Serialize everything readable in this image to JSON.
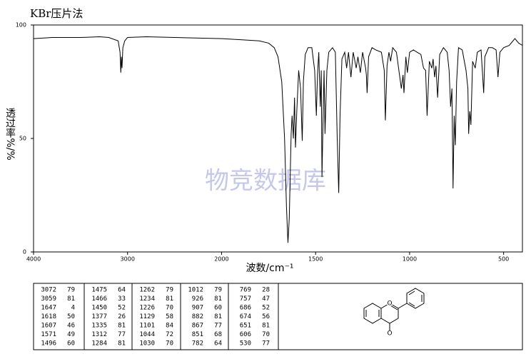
{
  "chart_data": {
    "type": "line",
    "title": "KBr压片法",
    "x_label": "波数/cm⁻¹",
    "y_label": "透过率%/%",
    "watermark": "物竞数据库",
    "color": "#000000",
    "xlim": [
      4000,
      400
    ],
    "xscale": {
      "break": 2000,
      "factor": 2
    },
    "xticks": [
      4000,
      3000,
      2000,
      1500,
      1000,
      500
    ],
    "ylim": [
      0,
      100
    ],
    "yticks": [
      0,
      50,
      100
    ],
    "x": [
      4000,
      3800,
      3500,
      3300,
      3200,
      3100,
      3080,
      3072,
      3065,
      3059,
      3050,
      3030,
      3000,
      2800,
      2500,
      2200,
      2000,
      1900,
      1800,
      1750,
      1720,
      1700,
      1680,
      1665,
      1655,
      1647,
      1640,
      1630,
      1625,
      1618,
      1612,
      1607,
      1600,
      1590,
      1580,
      1571,
      1565,
      1555,
      1540,
      1520,
      1505,
      1496,
      1490,
      1483,
      1478,
      1475,
      1470,
      1466,
      1460,
      1455,
      1450,
      1440,
      1430,
      1410,
      1395,
      1385,
      1377,
      1370,
      1360,
      1345,
      1335,
      1325,
      1312,
      1300,
      1284,
      1275,
      1262,
      1250,
      1234,
      1230,
      1226,
      1218,
      1200,
      1180,
      1150,
      1135,
      1129,
      1120,
      1110,
      1101,
      1090,
      1070,
      1044,
      1035,
      1030,
      1020,
      1012,
      1000,
      980,
      960,
      940,
      926,
      915,
      907,
      895,
      882,
      875,
      867,
      860,
      851,
      840,
      820,
      800,
      790,
      782,
      775,
      769,
      763,
      757,
      750,
      740,
      720,
      700,
      690,
      686,
      680,
      674,
      665,
      651,
      640,
      620,
      606,
      600,
      580,
      560,
      540,
      530,
      520,
      500,
      470,
      440,
      420,
      400
    ],
    "values": [
      94,
      94.5,
      94.5,
      94.8,
      94.5,
      93,
      88,
      79,
      86,
      81,
      90,
      93,
      94.5,
      94.8,
      94.5,
      94.2,
      94,
      93.5,
      93,
      92,
      90,
      86,
      75,
      50,
      20,
      4,
      15,
      52,
      60,
      50,
      68,
      46,
      62,
      80,
      72,
      49,
      75,
      87,
      90,
      90,
      80,
      60,
      78,
      88,
      72,
      64,
      80,
      33,
      60,
      80,
      52,
      80,
      88,
      90,
      88,
      50,
      26,
      60,
      85,
      88,
      81,
      88,
      77,
      88,
      81,
      86,
      79,
      88,
      81,
      78,
      70,
      86,
      90,
      89,
      88,
      80,
      58,
      82,
      88,
      84,
      90,
      88,
      72,
      78,
      70,
      86,
      79,
      88,
      89,
      88,
      87,
      81,
      80,
      60,
      84,
      81,
      85,
      77,
      82,
      68,
      87,
      90,
      88,
      80,
      64,
      72,
      28,
      60,
      47,
      75,
      90,
      89,
      80,
      72,
      52,
      62,
      56,
      84,
      81,
      88,
      89,
      70,
      86,
      90,
      90,
      89,
      77,
      88,
      90,
      91,
      94,
      92,
      91
    ]
  },
  "peak_table": [
    [
      [
        3072,
        79
      ],
      [
        3059,
        81
      ],
      [
        1647,
        4
      ],
      [
        1618,
        50
      ],
      [
        1607,
        46
      ],
      [
        1571,
        49
      ],
      [
        1496,
        60
      ]
    ],
    [
      [
        1475,
        64
      ],
      [
        1466,
        33
      ],
      [
        1450,
        52
      ],
      [
        1377,
        26
      ],
      [
        1335,
        81
      ],
      [
        1312,
        77
      ],
      [
        1284,
        81
      ]
    ],
    [
      [
        1262,
        79
      ],
      [
        1234,
        81
      ],
      [
        1226,
        70
      ],
      [
        1129,
        58
      ],
      [
        1101,
        84
      ],
      [
        1044,
        72
      ],
      [
        1030,
        70
      ]
    ],
    [
      [
        1012,
        79
      ],
      [
        926,
        81
      ],
      [
        907,
        60
      ],
      [
        882,
        81
      ],
      [
        867,
        77
      ],
      [
        851,
        68
      ],
      [
        782,
        64
      ]
    ],
    [
      [
        769,
        28
      ],
      [
        757,
        47
      ],
      [
        686,
        52
      ],
      [
        674,
        56
      ],
      [
        651,
        81
      ],
      [
        606,
        70
      ],
      [
        530,
        77
      ]
    ]
  ],
  "structure": {
    "atoms": [
      "O",
      "O"
    ]
  }
}
